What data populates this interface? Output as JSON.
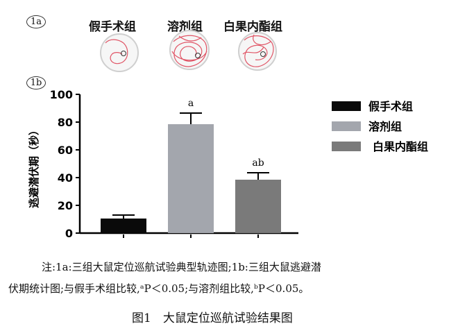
{
  "panel_a": {
    "label": "1a",
    "groups": [
      "假手术组",
      "溶剂组",
      "白果内酯组"
    ]
  },
  "panel_b": {
    "label": "1b"
  },
  "chart_data": {
    "type": "bar",
    "categories": [
      "假手术组",
      "溶剂组",
      "白果内酯组"
    ],
    "values": [
      10.5,
      78.5,
      38.5
    ],
    "errors": [
      2.5,
      8.0,
      5.0
    ],
    "bar_colors": [
      "#0a0a0a",
      "#a3a6ad",
      "#7a7a7a"
    ],
    "significance": [
      "",
      "a",
      "ab"
    ],
    "ylabel": "逃避潜伏期（秒）",
    "ylim": [
      0,
      100
    ],
    "yticks": [
      0,
      20,
      40,
      60,
      80,
      100
    ],
    "legend": {
      "position": "right",
      "entries": [
        {
          "label": "假手术组",
          "color": "#0a0a0a"
        },
        {
          "label": "溶剂组",
          "color": "#a3a6ad"
        },
        {
          "label": "白果内酯组",
          "color": "#7a7a7a"
        }
      ]
    }
  },
  "note": {
    "line1": "注:1a:三组大鼠定位巡航试验典型轨迹图;1b:三组大鼠逃避潜",
    "line2": "伏期统计图;与假手术组比较,ᵃP＜0.05;与溶剂组比较,ᵇP＜0.05。"
  },
  "caption": "图1　大鼠定位巡航试验结果图"
}
